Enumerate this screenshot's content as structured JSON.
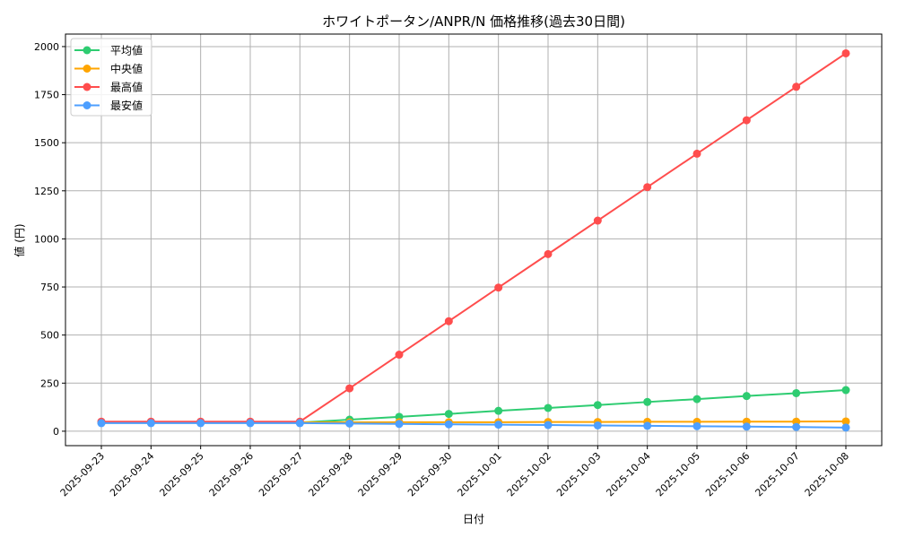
{
  "chart_data": {
    "type": "line",
    "title": "ホワイトポータン/ANPR/N 価格推移(過去30日間)",
    "xlabel": "日付",
    "ylabel": "値 (円)",
    "ylim": [
      -75,
      2065
    ],
    "yticks": [
      0,
      250,
      500,
      750,
      1000,
      1250,
      1500,
      1750,
      2000
    ],
    "grid": true,
    "legend_position": "top-left",
    "x": [
      "2025-09-23",
      "2025-09-24",
      "2025-09-25",
      "2025-09-26",
      "2025-09-27",
      "2025-09-28",
      "2025-09-29",
      "2025-09-30",
      "2025-10-01",
      "2025-10-02",
      "2025-10-03",
      "2025-10-04",
      "2025-10-05",
      "2025-10-06",
      "2025-10-07",
      "2025-10-08"
    ],
    "series": [
      {
        "name": "平均値",
        "color": "#2ecc71",
        "values": [
          45,
          45,
          45,
          45,
          45,
          60,
          75,
          90,
          106,
          121,
          136,
          152,
          167,
          183,
          198,
          214
        ]
      },
      {
        "name": "中央値",
        "color": "#ffa500",
        "values": [
          46,
          46,
          46,
          46,
          46,
          46,
          47,
          47,
          47,
          48,
          48,
          49,
          49,
          50,
          50,
          51
        ]
      },
      {
        "name": "最高値",
        "color": "#ff4d4d",
        "values": [
          50,
          50,
          50,
          50,
          50,
          223,
          398,
          572,
          747,
          921,
          1095,
          1269,
          1443,
          1617,
          1791,
          1965
        ]
      },
      {
        "name": "最安値",
        "color": "#4d9fff",
        "values": [
          42,
          42,
          42,
          42,
          42,
          40,
          38,
          36,
          34,
          32,
          30,
          28,
          26,
          24,
          22,
          19
        ]
      }
    ]
  }
}
